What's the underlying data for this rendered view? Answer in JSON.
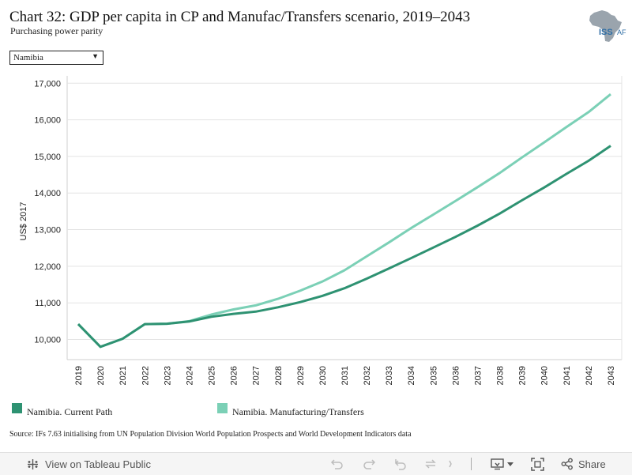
{
  "header": {
    "title": "Chart 32: GDP per capita in CP and Manufac/Transfers scenario, 2019–2043",
    "subtitle": "Purchasing power parity",
    "logo_text_iss": "ISS",
    "logo_text_af": "AF"
  },
  "filter": {
    "selected": "Namibia"
  },
  "chart_data": {
    "type": "line",
    "ylabel": "US$ 2017",
    "xlabel": "",
    "ylim": [
      9450,
      17200
    ],
    "yticks": [
      10000,
      11000,
      12000,
      13000,
      14000,
      15000,
      16000,
      17000
    ],
    "ytick_labels": [
      "10,000",
      "11,000",
      "12,000",
      "13,000",
      "14,000",
      "15,000",
      "16,000",
      "17,000"
    ],
    "x": [
      "2019",
      "2020",
      "2021",
      "2022",
      "2023",
      "2024",
      "2025",
      "2026",
      "2027",
      "2028",
      "2029",
      "2030",
      "2031",
      "2032",
      "2033",
      "2034",
      "2035",
      "2036",
      "2037",
      "2038",
      "2039",
      "2040",
      "2041",
      "2042",
      "2043"
    ],
    "grid": true,
    "legend_position": "bottom",
    "series": [
      {
        "name": "Namibia. Current Path",
        "color": "#2e9272",
        "values": [
          10420,
          9800,
          10020,
          10420,
          10430,
          10490,
          10620,
          10700,
          10760,
          10880,
          11020,
          11190,
          11400,
          11660,
          11940,
          12220,
          12510,
          12800,
          13110,
          13440,
          13800,
          14150,
          14520,
          14880,
          15290
        ]
      },
      {
        "name": "Namibia. Manufacturing/Transfers",
        "color": "#7bd0b6",
        "values": [
          10420,
          9800,
          10020,
          10420,
          10430,
          10500,
          10680,
          10820,
          10930,
          11110,
          11330,
          11580,
          11890,
          12270,
          12650,
          13040,
          13410,
          13780,
          14160,
          14550,
          14970,
          15380,
          15800,
          16210,
          16700
        ]
      }
    ]
  },
  "source": "Source: IFs 7.63 initialising from UN Population Division World Population Prospects and World Development Indicators data",
  "toolbar": {
    "view_label": "View on Tableau Public",
    "share_label": "Share",
    "icons": [
      "tableau-logo-icon",
      "undo-icon",
      "redo-icon",
      "revert-icon",
      "refresh-icon",
      "download-icon",
      "fullscreen-icon",
      "share-icon"
    ]
  }
}
